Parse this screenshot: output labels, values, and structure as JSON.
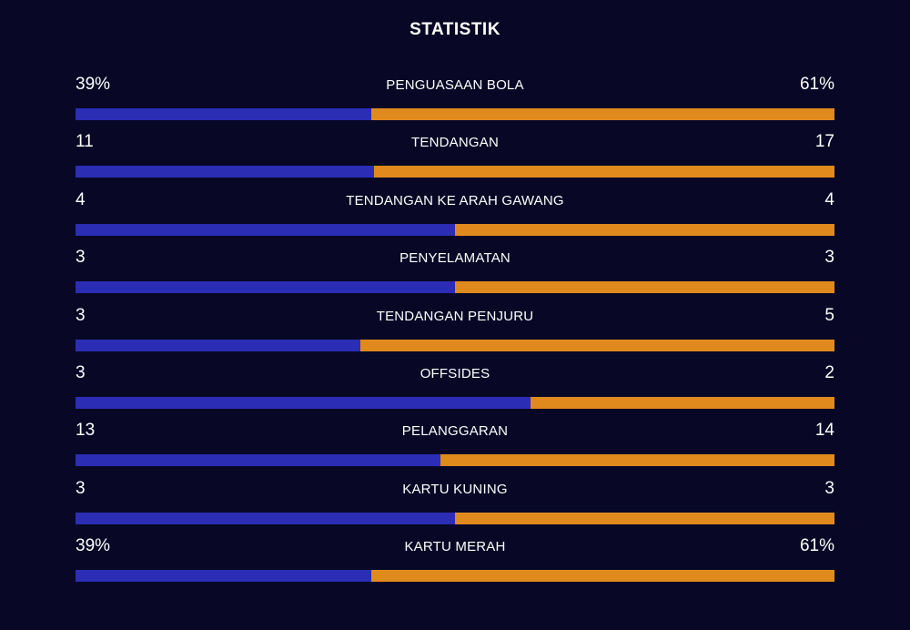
{
  "title": "STATISTIK",
  "stats": [
    {
      "label": "PENGUASAAN BOLA",
      "left": "39%",
      "right": "61%",
      "home_share": 0.39
    },
    {
      "label": "TENDANGAN",
      "left": "11",
      "right": "17",
      "home_share": 0.393
    },
    {
      "label": "TENDANGAN KE ARAH GAWANG",
      "left": "4",
      "right": "4",
      "home_share": 0.5
    },
    {
      "label": "PENYELAMATAN",
      "left": "3",
      "right": "3",
      "home_share": 0.5
    },
    {
      "label": "TENDANGAN PENJURU",
      "left": "3",
      "right": "5",
      "home_share": 0.375
    },
    {
      "label": "OFFSIDES",
      "left": "3",
      "right": "2",
      "home_share": 0.6
    },
    {
      "label": "PELANGGARAN",
      "left": "13",
      "right": "14",
      "home_share": 0.481
    },
    {
      "label": "KARTU KUNING",
      "left": "3",
      "right": "3",
      "home_share": 0.5
    },
    {
      "label": "KARTU MERAH",
      "left": "39%",
      "right": "61%",
      "home_share": 0.39
    }
  ],
  "colors": {
    "background": "#080826",
    "home_bar": "#2b2db5",
    "away_bar": "#e08a1e"
  }
}
